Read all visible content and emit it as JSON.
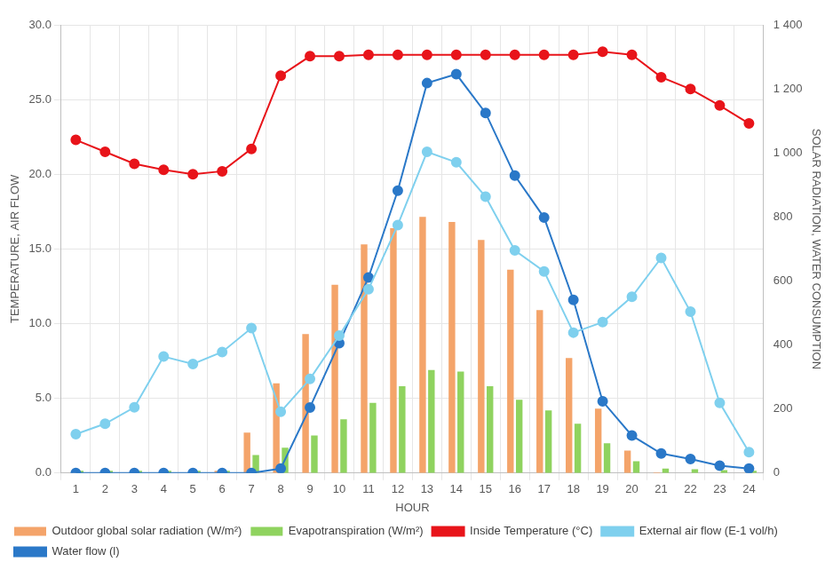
{
  "chart_data": {
    "type": "bar",
    "x_label": "HOUR",
    "y_label": "TEMPERATURE, AIR FLOW",
    "y2_label": "SOLAR RADIATION, WATER CONSUMPTION",
    "categories": [
      "1",
      "2",
      "3",
      "4",
      "5",
      "6",
      "7",
      "8",
      "9",
      "10",
      "11",
      "12",
      "13",
      "14",
      "15",
      "16",
      "17",
      "18",
      "19",
      "20",
      "21",
      "22",
      "23",
      "24"
    ],
    "ylim": [
      0,
      30
    ],
    "yticks": [
      {
        "value": 0,
        "label": "0.0"
      },
      {
        "value": 5,
        "label": "5.0"
      },
      {
        "value": 10,
        "label": "10.0"
      },
      {
        "value": 15,
        "label": "15.0"
      },
      {
        "value": 20,
        "label": "20.0"
      },
      {
        "value": 25,
        "label": "25.0"
      },
      {
        "value": 30,
        "label": "30.0"
      }
    ],
    "y2lim": [
      0,
      1400
    ],
    "y2ticks": [
      0,
      200,
      400,
      600,
      800,
      {
        "value": 1000,
        "label": "1 000"
      },
      {
        "value": 1200,
        "label": "1 200"
      },
      {
        "value": 1400,
        "label": "1 400"
      }
    ],
    "grid": true,
    "legend": "bottom",
    "series": [
      {
        "name": "Outdoor global solar radiation (W/m²)",
        "type": "bar",
        "axis": "y2",
        "color": "#f4a46a",
        "values": [
          0,
          0,
          0,
          0,
          0,
          7,
          126,
          280,
          434,
          588,
          714,
          765,
          800,
          784,
          728,
          635,
          509,
          359,
          201,
          70,
          2,
          0,
          0,
          0
        ]
      },
      {
        "name": "Evapotranspiration (W/m²)",
        "type": "bar",
        "axis": "y2",
        "color": "#8fd35f",
        "values": [
          7,
          7,
          7,
          7,
          7,
          7,
          56,
          79,
          117,
          168,
          219,
          271,
          322,
          317,
          271,
          229,
          196,
          154,
          93,
          37,
          14,
          12,
          9,
          7
        ]
      },
      {
        "name": "Inside Temperature (°C)",
        "type": "line",
        "axis": "y",
        "color": "#e8141a",
        "marker": "circle",
        "line_style": "solid",
        "values": [
          22.3,
          21.5,
          20.7,
          20.3,
          20.0,
          20.2,
          21.7,
          26.6,
          27.9,
          27.9,
          28.0,
          28.0,
          28.0,
          28.0,
          28.0,
          28.0,
          28.0,
          28.0,
          28.2,
          28.0,
          26.5,
          25.7,
          24.6,
          23.4
        ]
      },
      {
        "name": "External air flow (E-1 vol/h)",
        "type": "line",
        "axis": "y",
        "color": "#7fd0ee",
        "marker": "circle",
        "line_style": "solid",
        "values": [
          2.6,
          3.3,
          4.4,
          7.8,
          7.3,
          8.1,
          9.7,
          4.1,
          6.3,
          9.2,
          12.3,
          16.6,
          21.5,
          20.8,
          18.5,
          14.9,
          13.5,
          9.4,
          10.1,
          11.8,
          14.4,
          10.8,
          4.7,
          1.4
        ]
      },
      {
        "name": "Water flow (l)",
        "type": "line",
        "axis": "y2",
        "color": "#2a78c8",
        "marker": "circle",
        "line_style": "solid",
        "values": [
          0,
          0,
          0,
          0,
          0,
          0,
          0,
          14,
          205,
          406,
          611,
          882,
          1218,
          1246,
          1125,
          929,
          798,
          541,
          224,
          117,
          61,
          44,
          23,
          14
        ]
      }
    ]
  }
}
